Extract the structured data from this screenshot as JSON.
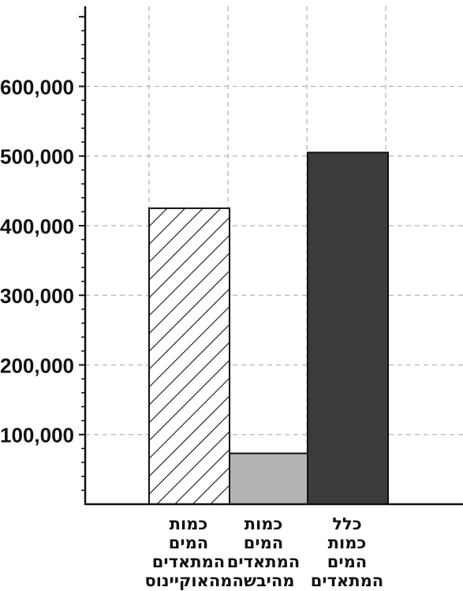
{
  "chart_data": {
    "type": "bar",
    "title": "",
    "xlabel": "",
    "ylabel": "",
    "ylim": [
      0,
      715000
    ],
    "y_ticks": [
      100000,
      200000,
      300000,
      400000,
      500000,
      600000
    ],
    "y_tick_labels": [
      "100,000",
      "200,000",
      "300,000",
      "400,000",
      "500,000",
      "600,000"
    ],
    "grid": true,
    "legend": "none",
    "categories": [
      [
        "כמות",
        "המים",
        "המתאדים",
        "מהאוקיינוס"
      ],
      [
        "כמות",
        "המים",
        "המתאדים",
        "מהיבשה"
      ],
      [
        "כלל",
        "כמות",
        "המים",
        "המתאדים"
      ]
    ],
    "values": [
      425000,
      73000,
      505000
    ],
    "fills": [
      "hatch",
      "#b3b3b3",
      "#3b3b3b"
    ]
  }
}
